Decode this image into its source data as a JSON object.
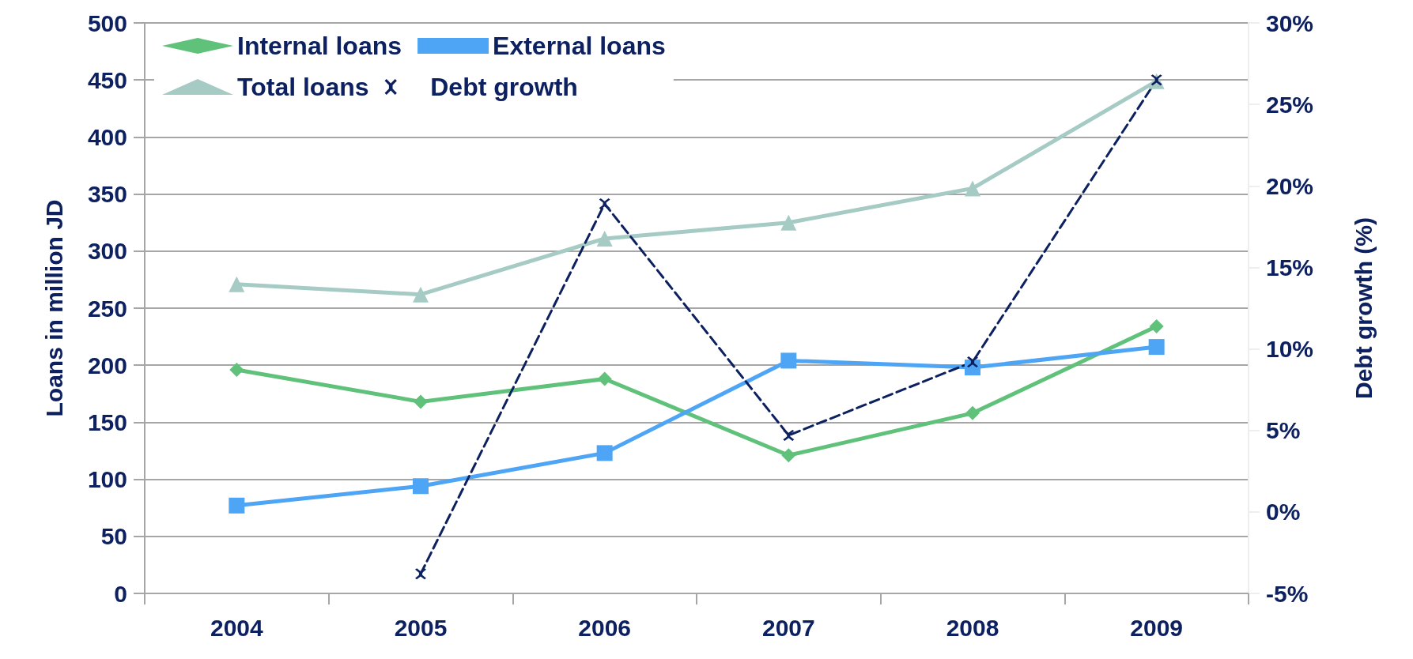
{
  "chart_data": {
    "type": "line",
    "ylabel": "Loans in million JD",
    "y2label": "Debt growth (%)",
    "categories": [
      "2004",
      "2005",
      "2006",
      "2007",
      "2008",
      "2009"
    ],
    "series": [
      {
        "name": "Internal loans",
        "color": "#5fc17a",
        "marker": "diamond",
        "values": [
          196,
          168,
          188,
          121,
          158,
          234
        ]
      },
      {
        "name": "External loans",
        "color": "#4ea5f5",
        "marker": "square",
        "values": [
          77,
          94,
          123,
          204,
          198,
          216
        ]
      },
      {
        "name": "Total loans",
        "color": "#a6cbc4",
        "marker": "triangle",
        "values": [
          271,
          262,
          311,
          325,
          355,
          449
        ]
      },
      {
        "name": "Debt growth",
        "color": "#0d2060",
        "marker": "cross",
        "line_style": "dashed",
        "axis": "y2",
        "values": [
          null,
          -3.8,
          18.9,
          4.7,
          9.2,
          26.5
        ]
      }
    ],
    "ylim": [
      0,
      500
    ],
    "yticks": [
      0,
      50,
      100,
      150,
      200,
      250,
      300,
      350,
      400,
      450,
      500
    ],
    "y2lim": [
      -5,
      30
    ],
    "y2ticks": [
      {
        "value": -5,
        "label": "-5%"
      },
      {
        "value": 0,
        "label": "0%"
      },
      {
        "value": 5,
        "label": "5%"
      },
      {
        "value": 10,
        "label": "10%"
      },
      {
        "value": 15,
        "label": "15%"
      },
      {
        "value": 20,
        "label": "20%"
      },
      {
        "value": 25,
        "label": "25%"
      },
      {
        "value": 30,
        "label": "30%"
      }
    ],
    "grid": "y",
    "legend": "top left"
  }
}
